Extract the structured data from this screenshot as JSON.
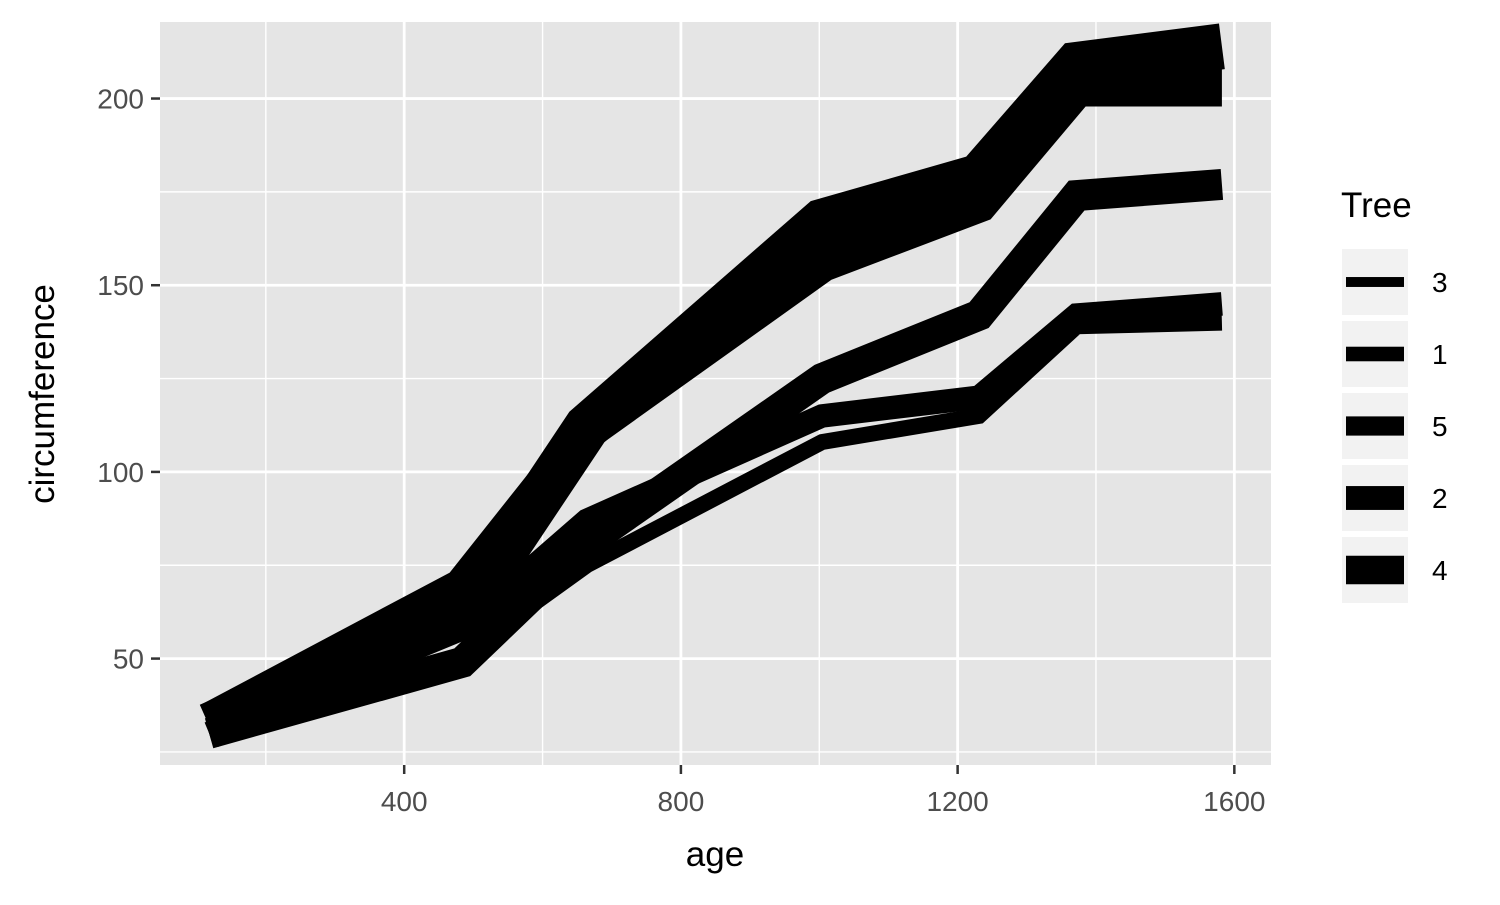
{
  "chart_data": {
    "type": "line",
    "title": "",
    "xlabel": "age",
    "ylabel": "circumference",
    "xlim": [
      47,
      1653
    ],
    "ylim": [
      21.5,
      220.5
    ],
    "x_ticks": [
      400,
      800,
      1200,
      1600
    ],
    "x_tick_labels": [
      "400",
      "800",
      "1200",
      "1600"
    ],
    "y_ticks": [
      50,
      100,
      150,
      200
    ],
    "y_tick_labels": [
      "50",
      "100",
      "150",
      "200"
    ],
    "x": [
      118,
      484,
      664,
      1004,
      1231,
      1372,
      1582
    ],
    "grid": true,
    "background": "#e5e5e5",
    "line_color": "#000000",
    "legend": {
      "title": "Tree",
      "position": "right",
      "order": [
        "3",
        "1",
        "5",
        "2",
        "4"
      ]
    },
    "series": [
      {
        "name": "3",
        "values": [
          30,
          51,
          75,
          108,
          115,
          139,
          140
        ],
        "size": 1
      },
      {
        "name": "1",
        "values": [
          30,
          58,
          87,
          115,
          120,
          142,
          145
        ],
        "size": 2
      },
      {
        "name": "5",
        "values": [
          30,
          49,
          81,
          125,
          142,
          174,
          177
        ],
        "size": 3
      },
      {
        "name": "2",
        "values": [
          33,
          69,
          111,
          156,
          172,
          203,
          203
        ],
        "size": 4
      },
      {
        "name": "4",
        "values": [
          32,
          62,
          112,
          167,
          179,
          209,
          214
        ],
        "size": 5
      }
    ]
  }
}
